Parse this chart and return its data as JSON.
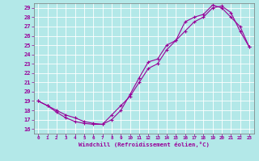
{
  "xlabel": "Windchill (Refroidissement éolien,°C)",
  "bg_color": "#b3e8e8",
  "line_color": "#990099",
  "xlim": [
    -0.5,
    23.5
  ],
  "ylim": [
    15.5,
    29.5
  ],
  "xticks": [
    0,
    1,
    2,
    3,
    4,
    5,
    6,
    7,
    8,
    9,
    10,
    11,
    12,
    13,
    14,
    15,
    16,
    17,
    18,
    19,
    20,
    21,
    22,
    23
  ],
  "yticks": [
    16,
    17,
    18,
    19,
    20,
    21,
    22,
    23,
    24,
    25,
    26,
    27,
    28,
    29
  ],
  "line1_x": [
    0,
    1,
    2,
    3,
    4,
    5,
    6,
    7,
    8,
    9,
    10,
    11,
    12,
    13,
    14,
    15,
    16,
    17,
    18,
    19,
    20,
    21,
    22,
    23
  ],
  "line1_y": [
    19.0,
    18.5,
    17.8,
    17.2,
    16.8,
    16.6,
    16.5,
    16.5,
    17.0,
    18.0,
    19.7,
    21.5,
    23.2,
    23.5,
    25.0,
    25.5,
    27.5,
    28.0,
    28.3,
    29.3,
    29.0,
    28.0,
    27.0,
    24.8
  ],
  "line2_x": [
    0,
    1,
    2,
    3,
    4,
    5,
    6,
    7,
    8,
    9,
    10,
    11,
    12,
    13,
    14,
    15,
    16,
    17,
    18,
    19,
    20,
    21,
    22,
    23
  ],
  "line2_y": [
    19.0,
    18.5,
    18.0,
    17.5,
    17.2,
    16.8,
    16.6,
    16.5,
    17.5,
    18.5,
    19.5,
    21.0,
    22.5,
    23.0,
    24.5,
    25.5,
    26.5,
    27.5,
    28.0,
    29.0,
    29.2,
    28.5,
    26.5,
    24.8
  ]
}
